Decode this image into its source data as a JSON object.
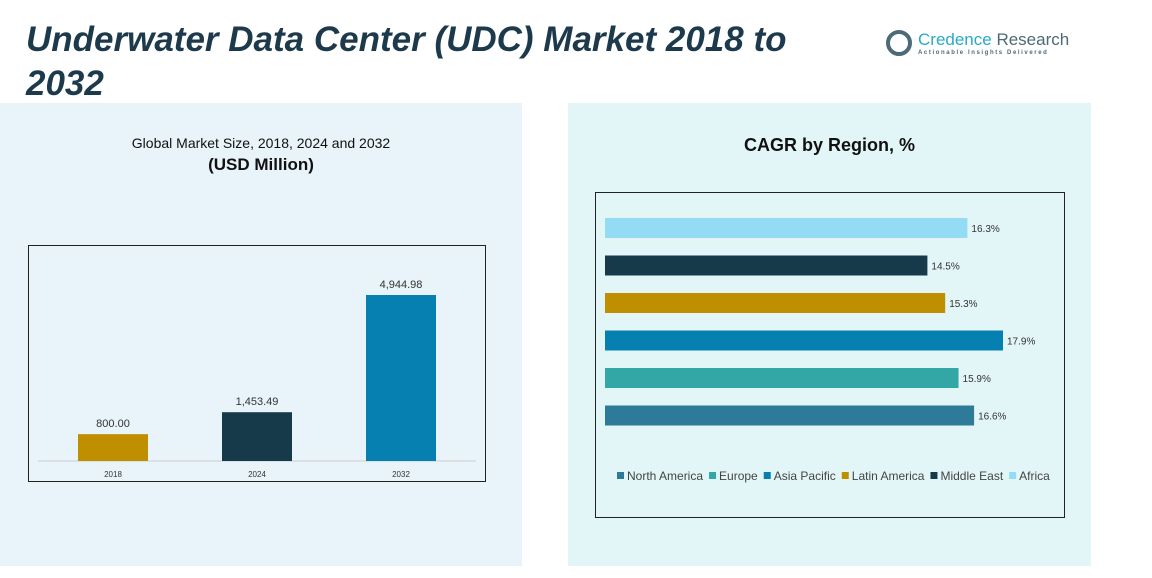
{
  "title": "Underwater Data Center (UDC) Market 2018 to 2032",
  "logo": {
    "name_a": "Credence",
    "name_b": " Research",
    "tagline": "Actionable Insights Delivered"
  },
  "chart_data": [
    {
      "type": "bar",
      "title": "Global Market Size, 2018, 2024 and 2032",
      "subtitle": "(USD Million)",
      "categories": [
        "2018",
        "2024",
        "2032"
      ],
      "values": [
        800.0,
        1453.49,
        4944.98
      ],
      "labels": [
        "800.00",
        "1,453.49",
        "4,944.98"
      ],
      "colors": [
        "#bf8f00",
        "#173a4b",
        "#0580b0"
      ],
      "ylim": [
        0,
        4945
      ]
    },
    {
      "type": "bar",
      "orientation": "horizontal",
      "title": "CAGR by Region, %",
      "categories": [
        "Africa",
        "Middle East",
        "Latin America",
        "Asia Pacific",
        "Europe",
        "North America"
      ],
      "values": [
        16.3,
        14.5,
        15.3,
        17.9,
        15.9,
        16.6
      ],
      "colors": [
        "#93dcf3",
        "#173a4b",
        "#bf8f00",
        "#0580b0",
        "#33a7a5",
        "#2e7a99"
      ],
      "legend": [
        "North America",
        "Europe",
        "Asia Pacific",
        "Latin America",
        "Middle East",
        "Africa"
      ],
      "legend_colors": [
        "#2e7a99",
        "#33a7a5",
        "#0580b0",
        "#bf8f00",
        "#173a4b",
        "#93dcf3"
      ],
      "legend_position": "bottom",
      "xlim": [
        0,
        17.9
      ]
    }
  ]
}
